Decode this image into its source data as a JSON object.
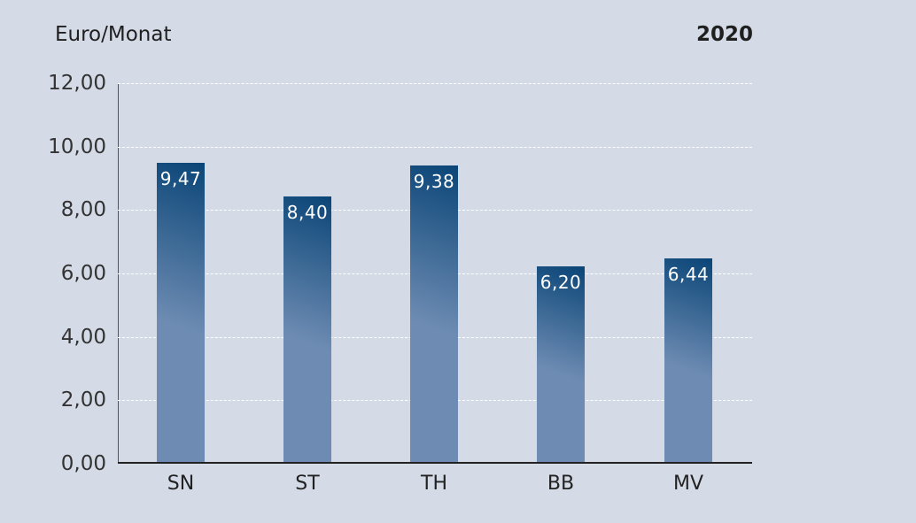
{
  "header": {
    "unit_label": "Euro/Monat",
    "year_label": "2020"
  },
  "chart_data": {
    "type": "bar",
    "title": "2020",
    "ylabel": "Euro/Monat",
    "xlabel": "",
    "categories": [
      "SN",
      "ST",
      "TH",
      "BB",
      "MV"
    ],
    "values": [
      9.47,
      8.4,
      9.38,
      6.2,
      6.44
    ],
    "value_labels": [
      "9,47",
      "8,40",
      "9,38",
      "6,20",
      "6,44"
    ],
    "ylim": [
      0,
      12
    ],
    "yticks": [
      "0,00",
      "2,00",
      "4,00",
      "6,00",
      "8,00",
      "10,00",
      "12,00"
    ],
    "grid": true,
    "legend": "none"
  },
  "colors": {
    "background": "#d4dbe7",
    "bar_top": "#0a4577",
    "bar_bottom": "#6e8cb3"
  }
}
